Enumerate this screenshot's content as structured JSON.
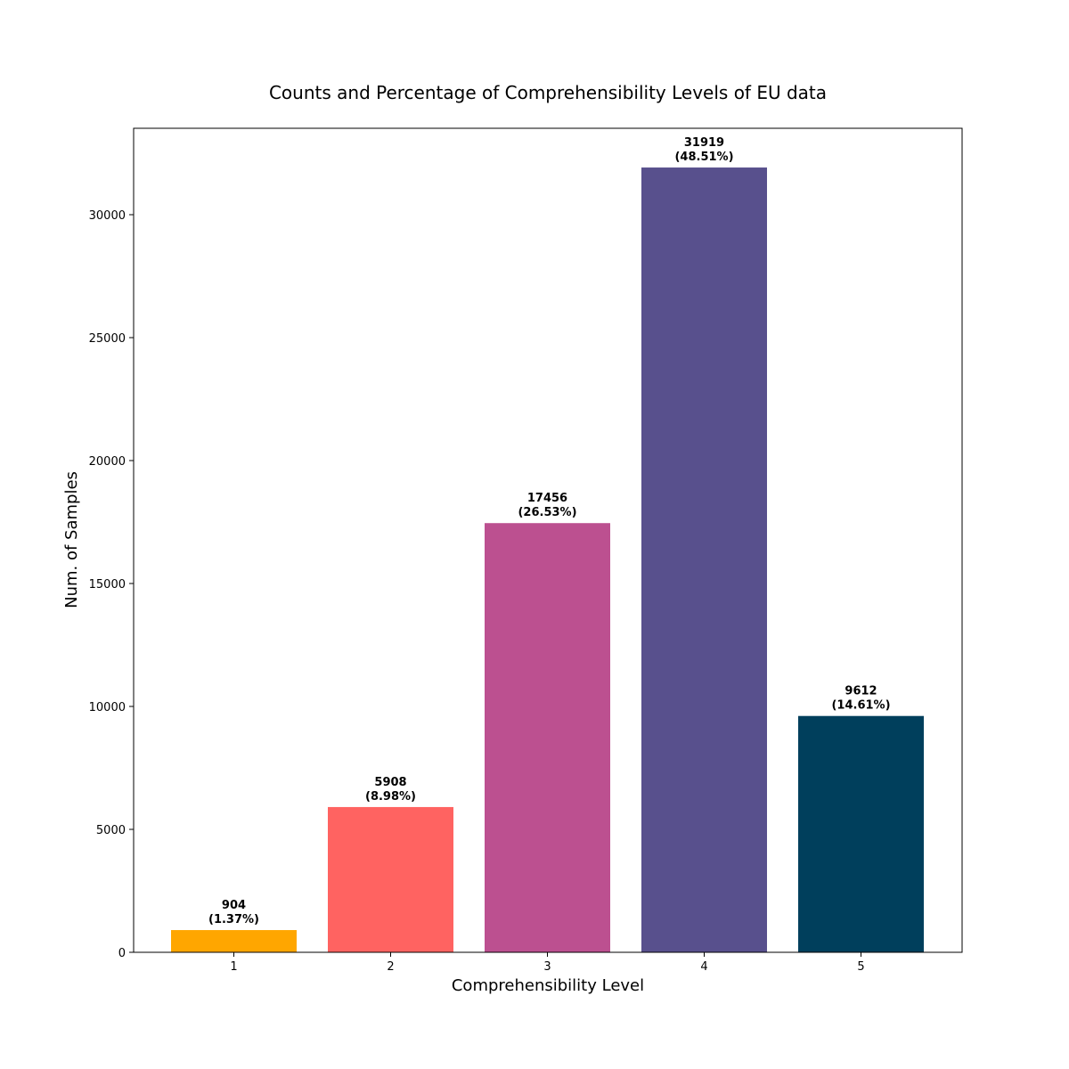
{
  "chart_data": {
    "type": "bar",
    "title": "Counts and Percentage of Comprehensibility Levels of EU data",
    "xlabel": "Comprehensibility Level",
    "ylabel": "Num. of Samples",
    "categories": [
      "1",
      "2",
      "3",
      "4",
      "5"
    ],
    "values": [
      904,
      5908,
      17456,
      31919,
      9612
    ],
    "percent_labels": [
      "(1.37%)",
      "(8.98%)",
      "(26.53%)",
      "(48.51%)",
      "(14.61%)"
    ],
    "colors": [
      "#ffa600",
      "#ff6361",
      "#bc5090",
      "#58508d",
      "#003f5c"
    ],
    "yticks": [
      0,
      5000,
      10000,
      15000,
      20000,
      25000,
      30000
    ],
    "ylim": [
      0,
      33515
    ],
    "grid": false
  }
}
